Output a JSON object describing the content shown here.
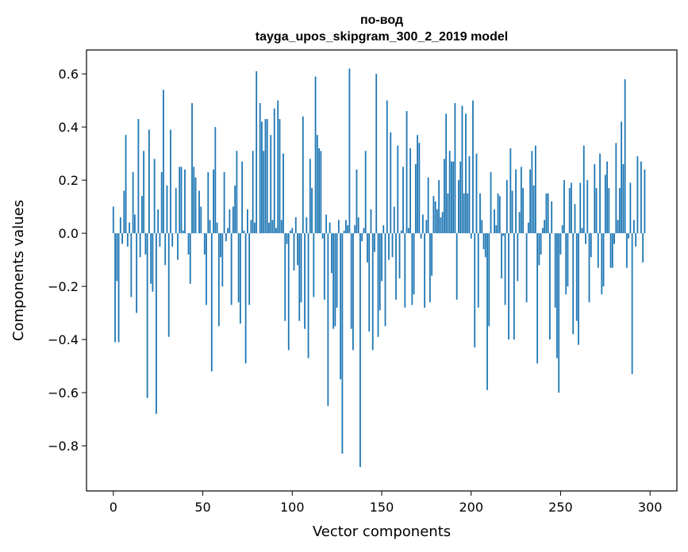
{
  "chart_data": {
    "type": "bar",
    "title_line1": "по-вод",
    "title_line2": "tayga_upos_skipgram_300_2_2019 model",
    "xlabel": "Vector components",
    "ylabel": "Components values",
    "xlim": [
      -15,
      315
    ],
    "ylim": [
      -0.97,
      0.69
    ],
    "xticks": [
      0,
      50,
      100,
      150,
      200,
      250,
      300
    ],
    "xtick_labels": [
      "0",
      "50",
      "100",
      "150",
      "200",
      "250",
      "300"
    ],
    "yticks": [
      0.6,
      0.4,
      0.2,
      0.0,
      -0.2,
      -0.4,
      -0.6,
      -0.8
    ],
    "ytick_labels": [
      "0.6",
      "0.4",
      "0.2",
      "0.0",
      "−0.2",
      "−0.4",
      "−0.6",
      "−0.8"
    ],
    "bar_color": "#1f77b4",
    "values": [
      0.1,
      -0.41,
      -0.18,
      -0.41,
      0.06,
      -0.04,
      0.16,
      0.37,
      -0.05,
      0.04,
      -0.24,
      0.23,
      0.07,
      -0.3,
      0.43,
      -0.09,
      0.14,
      0.31,
      -0.08,
      -0.62,
      0.39,
      -0.19,
      -0.22,
      0.28,
      -0.68,
      0.09,
      -0.05,
      0.23,
      0.54,
      -0.12,
      0.18,
      -0.39,
      0.39,
      -0.05,
      0.0,
      0.17,
      -0.1,
      0.25,
      0.25,
      0.01,
      0.24,
      0.0,
      -0.08,
      -0.19,
      0.49,
      0.25,
      0.21,
      0.0,
      0.16,
      0.1,
      0.0,
      -0.08,
      -0.27,
      0.23,
      0.05,
      -0.52,
      0.24,
      0.4,
      0.04,
      -0.35,
      -0.09,
      -0.2,
      0.23,
      -0.03,
      0.02,
      0.09,
      -0.27,
      0.1,
      0.18,
      0.31,
      -0.26,
      -0.34,
      0.27,
      0.01,
      -0.49,
      0.09,
      -0.27,
      0.05,
      0.31,
      0.04,
      0.61,
      0.0,
      0.49,
      0.42,
      0.31,
      0.43,
      0.43,
      0.04,
      0.37,
      0.05,
      0.47,
      0.02,
      0.5,
      0.43,
      0.05,
      0.3,
      -0.33,
      -0.04,
      -0.44,
      0.01,
      0.02,
      -0.14,
      0.06,
      -0.12,
      -0.33,
      -0.26,
      0.44,
      -0.36,
      0.06,
      -0.47,
      0.28,
      0.17,
      -0.24,
      0.59,
      0.37,
      0.32,
      0.31,
      -0.02,
      -0.25,
      0.07,
      -0.65,
      0.04,
      -0.15,
      -0.36,
      -0.35,
      -0.28,
      0.05,
      -0.55,
      -0.83,
      0.01,
      0.05,
      0.03,
      0.62,
      -0.36,
      -0.44,
      0.03,
      0.24,
      0.06,
      -0.88,
      -0.03,
      0.02,
      0.31,
      -0.11,
      -0.37,
      0.09,
      -0.44,
      -0.07,
      0.6,
      -0.39,
      -0.29,
      -0.18,
      0.03,
      -0.35,
      0.5,
      -0.1,
      0.38,
      -0.09,
      0.1,
      -0.25,
      0.33,
      -0.17,
      0.01,
      0.25,
      -0.28,
      0.46,
      0.02,
      0.32,
      -0.27,
      -0.23,
      0.26,
      0.37,
      0.34,
      -0.02,
      0.07,
      -0.28,
      0.05,
      0.21,
      -0.26,
      -0.16,
      0.14,
      0.12,
      0.09,
      0.2,
      0.06,
      0.08,
      0.28,
      0.45,
      0.15,
      0.31,
      0.27,
      0.27,
      0.49,
      -0.25,
      0.2,
      0.27,
      0.48,
      0.15,
      0.45,
      0.15,
      0.29,
      -0.02,
      0.5,
      -0.43,
      0.3,
      -0.28,
      0.15,
      0.05,
      -0.06,
      -0.09,
      -0.59,
      -0.35,
      0.23,
      0.0,
      0.09,
      0.03,
      0.15,
      0.14,
      -0.17,
      -0.01,
      -0.27,
      0.2,
      -0.4,
      0.32,
      0.16,
      -0.4,
      0.24,
      -0.18,
      0.08,
      0.25,
      0.17,
      0.0,
      -0.26,
      0.04,
      0.24,
      0.31,
      0.18,
      0.33,
      -0.49,
      -0.12,
      -0.08,
      0.02,
      0.05,
      0.15,
      0.15,
      -0.4,
      0.12,
      0.0,
      -0.28,
      -0.47,
      -0.6,
      -0.08,
      0.03,
      0.2,
      -0.23,
      -0.2,
      0.17,
      0.19,
      -0.38,
      0.11,
      -0.33,
      -0.42,
      0.19,
      0.02,
      0.33,
      -0.04,
      0.2,
      -0.26,
      -0.09,
      0.0,
      0.26,
      0.17,
      -0.13,
      0.3,
      -0.23,
      -0.2,
      0.22,
      0.27,
      0.17,
      -0.13,
      -0.13,
      -0.04,
      0.34,
      0.05,
      0.17,
      0.42,
      0.26,
      0.58,
      -0.13,
      -0.02,
      0.19,
      -0.53,
      0.05,
      -0.05,
      0.29,
      0.0,
      0.27,
      -0.11,
      0.24
    ]
  }
}
